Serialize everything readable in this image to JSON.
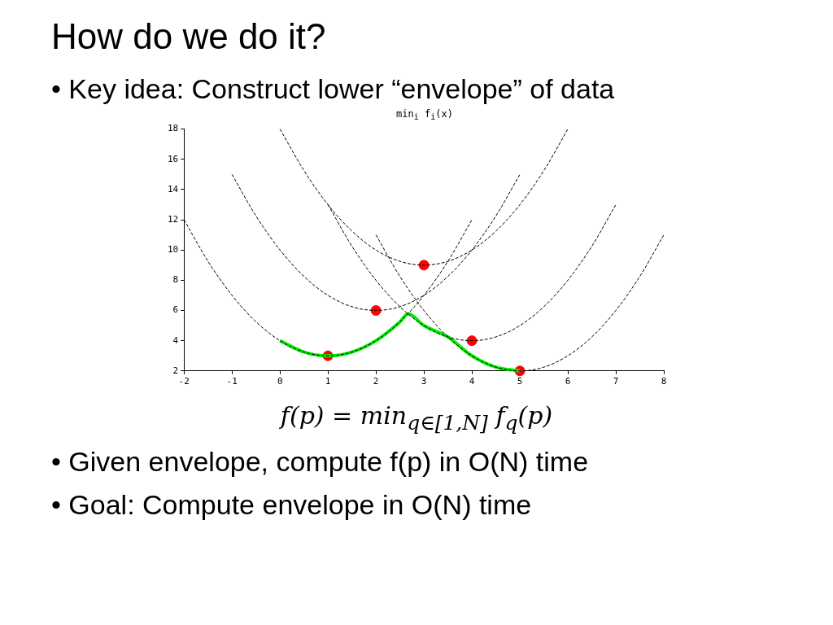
{
  "chart_data": {
    "type": "line",
    "title": "How do we do it?",
    "subtitle": "min$_{i}$ f$_{i}$(x)",
    "annotations": [
      "• Key idea: Construct lower “envelope” of data",
      "f(p) = min$_{q∈[1,N]}$  f$_{q}$(p)",
      "• Given envelope, compute f(p) in O(N) time",
      "• Goal: Compute envelope in O(N) time"
    ],
    "xlim": [
      -2,
      8
    ],
    "xticks": [
      -2,
      -1,
      0,
      1,
      2,
      3,
      4,
      5,
      6,
      7,
      8
    ],
    "ylim": [
      2,
      18
    ],
    "yticks": [
      2,
      4,
      6,
      8,
      10,
      12,
      14,
      16,
      18
    ],
    "grid": false,
    "series": [
      {
        "type": "line",
        "color": "#000000",
        "line_style": "dashed",
        "marker": "none",
        "x": [
          -2,
          -1.5,
          -1,
          -0.5,
          0,
          0.5,
          1,
          1.5,
          2,
          2.5,
          3,
          3.5,
          4
        ],
        "values": [
          12,
          9.25,
          7,
          5.25,
          4,
          3.25,
          3,
          3.25,
          4,
          5.25,
          7,
          9.25,
          12
        ]
      },
      {
        "type": "line",
        "color": "#000000",
        "line_style": "dashed",
        "marker": "none",
        "x": [
          -1,
          -0.5,
          0,
          0.5,
          1,
          1.5,
          2,
          2.5,
          3,
          3.5,
          4,
          4.5,
          5
        ],
        "values": [
          15,
          12.25,
          10,
          8.25,
          7,
          6.25,
          6,
          6.25,
          7,
          8.25,
          10,
          12.25,
          15
        ]
      },
      {
        "type": "line",
        "color": "#000000",
        "line_style": "dashed",
        "marker": "none",
        "x": [
          0,
          0.5,
          1,
          1.5,
          2,
          2.5,
          3,
          3.5,
          4,
          4.5,
          5,
          5.5,
          6
        ],
        "values": [
          18,
          15.25,
          13,
          11.25,
          10,
          9.25,
          9,
          9.25,
          10,
          11.25,
          13,
          15.25,
          18
        ]
      },
      {
        "type": "line",
        "color": "#000000",
        "line_style": "dashed",
        "marker": "none",
        "x": [
          1,
          1.5,
          2,
          2.5,
          3,
          3.5,
          4,
          4.5,
          5,
          5.5,
          6,
          6.5,
          7
        ],
        "values": [
          13,
          10.25,
          8,
          6.25,
          5,
          4.25,
          4,
          4.25,
          5,
          6.25,
          8,
          10.25,
          13
        ]
      },
      {
        "type": "line",
        "color": "#000000",
        "line_style": "dashed",
        "marker": "none",
        "x": [
          2,
          2.5,
          3,
          3.5,
          4,
          4.5,
          5,
          5.5,
          6,
          6.5,
          7,
          7.5,
          8
        ],
        "values": [
          11,
          8.25,
          6,
          4.25,
          3,
          2.25,
          2,
          2.25,
          3,
          4.25,
          6,
          8.25,
          11
        ]
      },
      {
        "type": "line",
        "color": "#00ee00",
        "line_style": "solid",
        "marker": "none",
        "x": [
          0,
          0.5,
          1,
          1.5,
          2,
          2.5,
          2.67,
          3,
          3.5,
          4,
          4.5,
          5
        ],
        "values": [
          4,
          3.25,
          3,
          3.25,
          4,
          5.25,
          5.78,
          5,
          4.25,
          3,
          2.25,
          2
        ]
      },
      {
        "type": "scatter",
        "color": "#ff0000",
        "marker": "circle",
        "x": [
          1,
          2,
          3,
          4,
          5
        ],
        "values": [
          3,
          6,
          9,
          4,
          2
        ]
      }
    ]
  }
}
